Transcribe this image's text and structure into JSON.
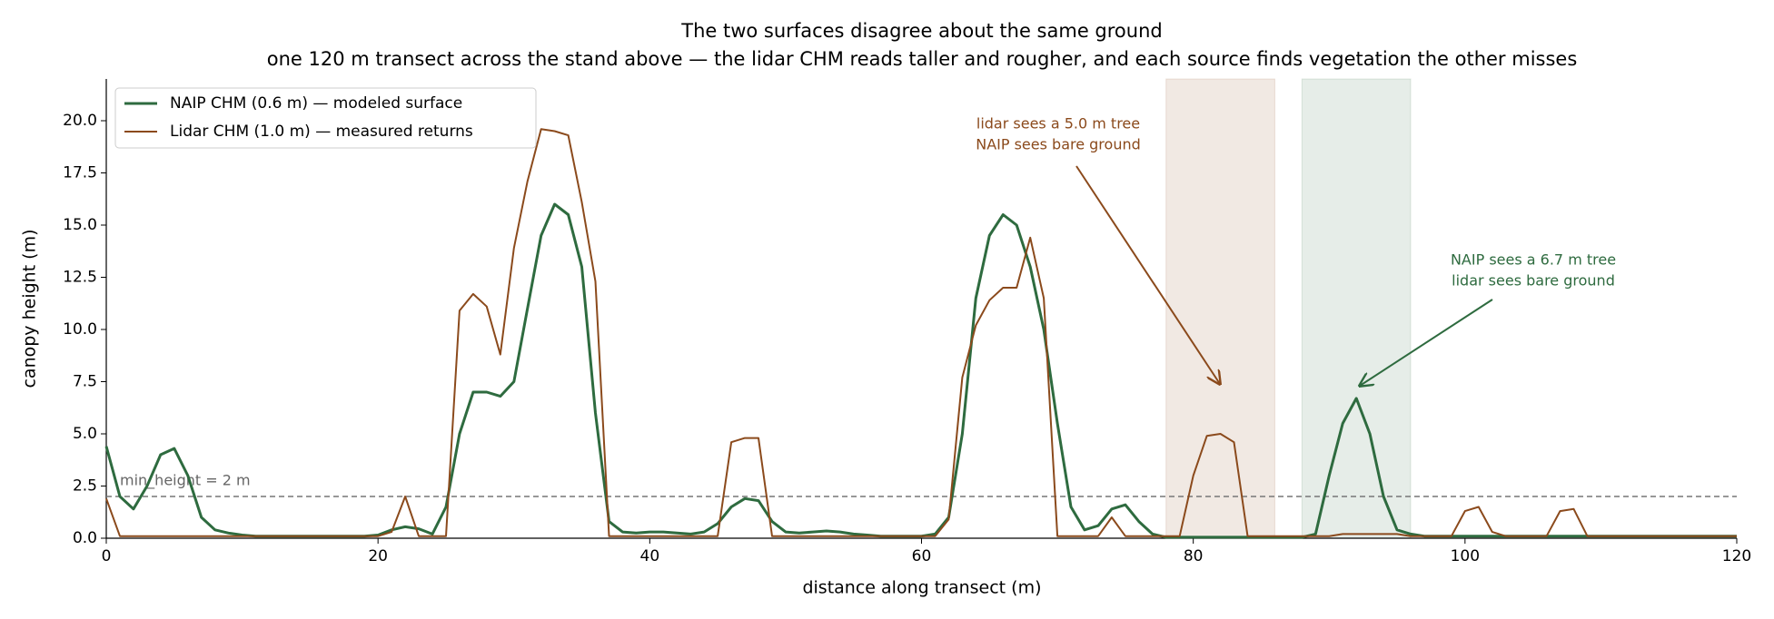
{
  "chart_data": {
    "type": "line",
    "title": "The two surfaces disagree about the same ground",
    "subtitle": "one 120 m transect across the stand above — the lidar CHM reads taller and rougher, and each source finds vegetation the other misses",
    "x_label": "distance along transect (m)",
    "y_label": "canopy height (m)",
    "xlim": [
      0,
      120
    ],
    "ylim": [
      0,
      22
    ],
    "xticks": [
      0,
      20,
      40,
      60,
      80,
      100,
      120
    ],
    "yticks": [
      {
        "value": 0,
        "label": "0.0"
      },
      {
        "value": 2.5,
        "label": "2.5"
      },
      {
        "value": 5,
        "label": "5.0"
      },
      {
        "value": 7.5,
        "label": "7.5"
      },
      {
        "value": 10,
        "label": "10.0"
      },
      {
        "value": 12.5,
        "label": "12.5"
      },
      {
        "value": 15,
        "label": "15.0"
      },
      {
        "value": 17.5,
        "label": "17.5"
      },
      {
        "value": 20,
        "label": "20.0"
      }
    ],
    "legend": "upper left",
    "x": [
      0,
      1,
      2,
      3,
      4,
      5,
      6,
      7,
      8,
      9,
      10,
      11,
      12,
      13,
      14,
      15,
      16,
      17,
      18,
      19,
      20,
      21,
      22,
      23,
      24,
      25,
      26,
      27,
      28,
      29,
      30,
      31,
      32,
      33,
      34,
      35,
      36,
      37,
      38,
      39,
      40,
      41,
      42,
      43,
      44,
      45,
      46,
      47,
      48,
      49,
      50,
      51,
      52,
      53,
      54,
      55,
      56,
      57,
      58,
      59,
      60,
      61,
      62,
      63,
      64,
      65,
      66,
      67,
      68,
      69,
      70,
      71,
      72,
      73,
      74,
      75,
      76,
      77,
      78,
      79,
      80,
      81,
      82,
      83,
      84,
      85,
      86,
      87,
      88,
      89,
      90,
      91,
      92,
      93,
      94,
      95,
      96,
      97,
      98,
      99,
      100,
      101,
      102,
      103,
      104,
      105,
      106,
      107,
      108,
      109,
      110,
      111,
      112,
      113,
      114,
      115,
      116,
      117,
      118,
      119,
      120
    ],
    "series": [
      {
        "name": "NAIP CHM (0.6 m) — modeled surface",
        "color": "#2e6b3f",
        "values": [
          4.4,
          2.0,
          1.4,
          2.5,
          4.0,
          4.3,
          3.0,
          1.0,
          0.4,
          0.25,
          0.15,
          0.1,
          0.1,
          0.1,
          0.1,
          0.1,
          0.1,
          0.1,
          0.1,
          0.1,
          0.15,
          0.4,
          0.55,
          0.45,
          0.2,
          1.5,
          5.0,
          7.0,
          7.0,
          6.8,
          7.5,
          11.0,
          14.5,
          16.0,
          15.5,
          13.0,
          6.0,
          0.8,
          0.3,
          0.25,
          0.3,
          0.3,
          0.25,
          0.2,
          0.3,
          0.7,
          1.5,
          1.9,
          1.8,
          0.8,
          0.3,
          0.25,
          0.3,
          0.35,
          0.3,
          0.2,
          0.15,
          0.1,
          0.1,
          0.1,
          0.1,
          0.2,
          1.0,
          5.0,
          11.5,
          14.5,
          15.5,
          15.0,
          13.0,
          10.0,
          5.5,
          1.5,
          0.4,
          0.6,
          1.4,
          1.6,
          0.8,
          0.2,
          0.05,
          0.05,
          0.05,
          0.05,
          0.05,
          0.05,
          0.05,
          0.05,
          0.05,
          0.05,
          0.05,
          0.2,
          3.0,
          5.5,
          6.7,
          5.0,
          2.0,
          0.4,
          0.2,
          0.1,
          0.1,
          0.1,
          0.1,
          0.1,
          0.1,
          0.1,
          0.1,
          0.1,
          0.1,
          0.1,
          0.1,
          0.1,
          0.1,
          0.1,
          0.1,
          0.1,
          0.1,
          0.1,
          0.1,
          0.1,
          0.1,
          0.1,
          0.1
        ]
      },
      {
        "name": "Lidar CHM (1.0 m) — measured returns",
        "color": "#8b4a1c",
        "values": [
          1.9,
          0.1,
          0.1,
          0.1,
          0.1,
          0.1,
          0.1,
          0.1,
          0.1,
          0.1,
          0.1,
          0.1,
          0.1,
          0.1,
          0.1,
          0.1,
          0.1,
          0.1,
          0.1,
          0.1,
          0.1,
          0.3,
          2.0,
          0.1,
          0.1,
          0.1,
          10.9,
          11.7,
          11.1,
          8.8,
          13.9,
          17.1,
          19.6,
          19.5,
          19.3,
          16.1,
          12.3,
          0.1,
          0.1,
          0.1,
          0.1,
          0.1,
          0.1,
          0.1,
          0.1,
          0.1,
          4.6,
          4.8,
          4.8,
          0.1,
          0.1,
          0.1,
          0.1,
          0.1,
          0.1,
          0.1,
          0.1,
          0.1,
          0.1,
          0.1,
          0.1,
          0.1,
          0.9,
          7.7,
          10.2,
          11.4,
          12.0,
          12.0,
          14.4,
          11.5,
          0.1,
          0.1,
          0.1,
          0.1,
          1.0,
          0.1,
          0.1,
          0.1,
          0.1,
          0.1,
          3.0,
          4.9,
          5.0,
          4.6,
          0.1,
          0.1,
          0.1,
          0.1,
          0.1,
          0.1,
          0.1,
          0.2,
          0.2,
          0.2,
          0.2,
          0.2,
          0.1,
          0.1,
          0.1,
          0.1,
          1.3,
          1.5,
          0.3,
          0.1,
          0.1,
          0.1,
          0.1,
          1.3,
          1.4,
          0.1,
          0.1,
          0.1,
          0.1,
          0.1,
          0.1,
          0.1,
          0.1,
          0.1,
          0.1,
          0.1,
          0.1
        ]
      }
    ],
    "spans": [
      {
        "x0": 78,
        "x1": 86,
        "color": "#8b4a1c"
      },
      {
        "x0": 88,
        "x1": 96,
        "color": "#2e6b3f"
      }
    ],
    "hline": {
      "y": 2,
      "label": "min_height = 2 m"
    },
    "annotations": [
      {
        "lines": [
          "lidar sees a 5.0 m tree",
          "NAIP sees bare ground"
        ],
        "color": "#8b4a1c"
      },
      {
        "lines": [
          "NAIP sees a 6.7 m tree",
          "lidar sees bare ground"
        ],
        "color": "#2e6b3f"
      }
    ]
  }
}
